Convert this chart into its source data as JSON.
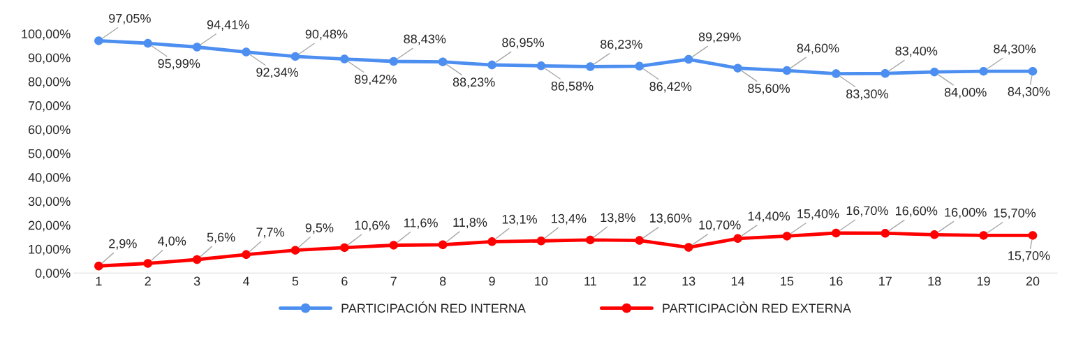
{
  "chart_data": {
    "type": "line",
    "categories": [
      "1",
      "2",
      "3",
      "4",
      "5",
      "6",
      "7",
      "8",
      "9",
      "10",
      "11",
      "12",
      "13",
      "14",
      "15",
      "16",
      "17",
      "18",
      "19",
      "20"
    ],
    "series": [
      {
        "name": "PARTICIPACIÓN RED INTERNA",
        "color": "#4d8ff0",
        "values": [
          97.05,
          95.99,
          94.41,
          92.34,
          90.48,
          89.42,
          88.43,
          88.23,
          86.95,
          86.58,
          86.23,
          86.42,
          89.29,
          85.6,
          84.6,
          83.3,
          83.4,
          84.0,
          84.3,
          84.3
        ],
        "value_labels": [
          "97,05%",
          "95,99%",
          "94,41%",
          "92,34%",
          "90,48%",
          "89,42%",
          "88,43%",
          "88,23%",
          "86,95%",
          "86,58%",
          "86,23%",
          "86,42%",
          "89,29%",
          "85,60%",
          "84,60%",
          "83,30%",
          "83,40%",
          "84,00%",
          "84,30%",
          "84,30%"
        ]
      },
      {
        "name": "PARTICIPACIÒN RED EXTERNA",
        "color": "#ff0000",
        "values": [
          2.9,
          4.0,
          5.6,
          7.7,
          9.5,
          10.6,
          11.6,
          11.8,
          13.1,
          13.4,
          13.8,
          13.6,
          10.7,
          14.4,
          15.4,
          16.7,
          16.6,
          16.0,
          15.7,
          15.7
        ],
        "value_labels": [
          "2,9%",
          "4,0%",
          "5,6%",
          "7,7%",
          "9,5%",
          "10,6%",
          "11,6%",
          "11,8%",
          "13,1%",
          "13,4%",
          "13,8%",
          "13,60%",
          "10,70%",
          "14,40%",
          "15,40%",
          "16,70%",
          "16,60%",
          "16,00%",
          "15,70%",
          "15,70%"
        ]
      }
    ],
    "ylim": [
      0,
      100
    ],
    "yticks": [
      {
        "value": 0,
        "label": "0,00%"
      },
      {
        "value": 10,
        "label": "10,00%"
      },
      {
        "value": 20,
        "label": "20,00%"
      },
      {
        "value": 30,
        "label": "30,00%"
      },
      {
        "value": 40,
        "label": "40,00%"
      },
      {
        "value": 50,
        "label": "50,00%"
      },
      {
        "value": 60,
        "label": "60,00%"
      },
      {
        "value": 70,
        "label": "70,00%"
      },
      {
        "value": 80,
        "label": "80,00%"
      },
      {
        "value": 90,
        "label": "90,00%"
      },
      {
        "value": 100,
        "label": "100,00%"
      }
    ],
    "marker": "circle",
    "line_style": "solid",
    "grid": false,
    "legend": "bottom"
  }
}
